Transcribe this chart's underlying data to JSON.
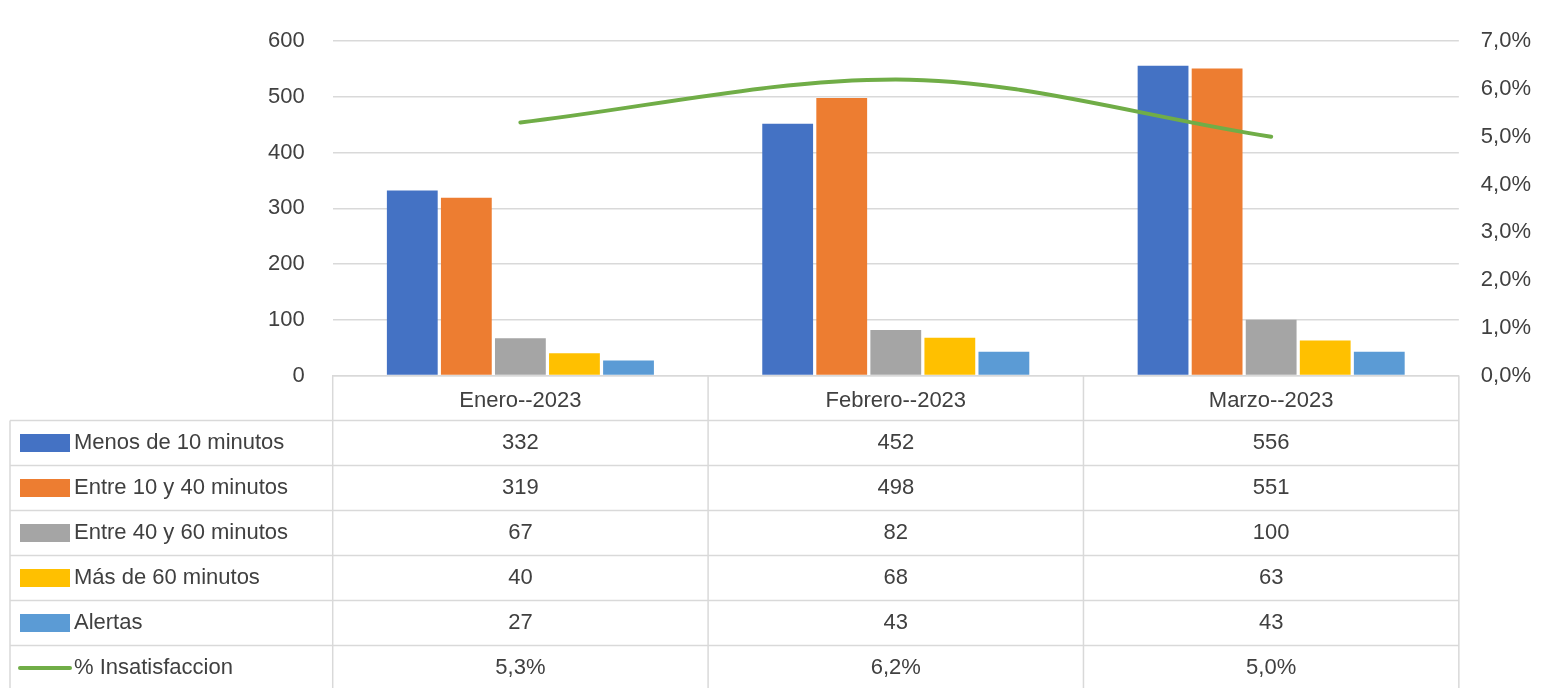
{
  "chart_data": {
    "type": "bar",
    "categories": [
      "Enero--2023",
      "Febrero--2023",
      "Marzo--2023"
    ],
    "series": [
      {
        "name": "Menos de 10 minutos",
        "color": "#4472c4",
        "values": [
          332,
          452,
          556
        ],
        "value_labels": [
          "332",
          "452",
          "556"
        ]
      },
      {
        "name": "Entre 10 y 40 minutos",
        "color": "#ed7d31",
        "values": [
          319,
          498,
          551
        ],
        "value_labels": [
          "319",
          "498",
          "551"
        ]
      },
      {
        "name": "Entre 40 y 60 minutos",
        "color": "#a5a5a5",
        "values": [
          67,
          82,
          100
        ],
        "value_labels": [
          "67",
          "82",
          "100"
        ]
      },
      {
        "name": "Más de 60 minutos",
        "color": "#ffc000",
        "values": [
          40,
          68,
          63
        ],
        "value_labels": [
          "40",
          "68",
          "63"
        ]
      },
      {
        "name": "Alertas",
        "color": "#5b9bd5",
        "values": [
          27,
          43,
          43
        ],
        "value_labels": [
          "27",
          "43",
          "43"
        ]
      },
      {
        "name": "% Insatisfaccion",
        "color": "#70ad47",
        "type": "line",
        "axis": "y2",
        "values": [
          5.3,
          6.2,
          5.0
        ],
        "value_labels": [
          "5,3%",
          "6,2%",
          "5,0%"
        ]
      }
    ],
    "ylim": [
      0,
      600
    ],
    "yticks": [
      0,
      100,
      200,
      300,
      400,
      500,
      600
    ],
    "y2lim": [
      0,
      7
    ],
    "y2ticks": [
      {
        "value": 0,
        "label": "0,0%"
      },
      {
        "value": 1,
        "label": "1,0%"
      },
      {
        "value": 2,
        "label": "2,0%"
      },
      {
        "value": 3,
        "label": "3,0%"
      },
      {
        "value": 4,
        "label": "4,0%"
      },
      {
        "value": 5,
        "label": "5,0%"
      },
      {
        "value": 6,
        "label": "6,0%"
      },
      {
        "value": 7,
        "label": "7,0%"
      }
    ],
    "grid": "y",
    "legend": "bottom",
    "marker": "none",
    "line_style": "solid"
  }
}
